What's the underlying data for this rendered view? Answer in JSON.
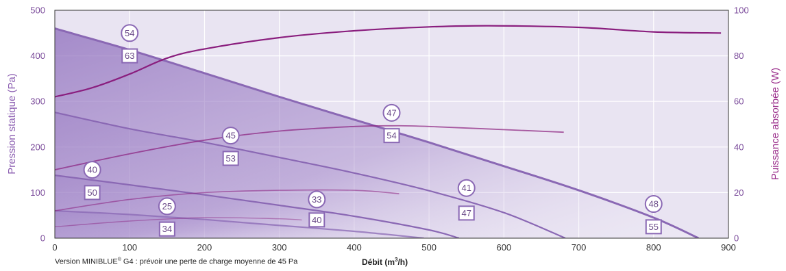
{
  "chart_data": {
    "type": "line",
    "xlabel": "Débit",
    "xunit": "m",
    "xunit_exp": "3",
    "xunit_tail": "/h)",
    "xlabel_open": " (",
    "ylabel": "Pression statique (Pa)",
    "y2label": "Puissance absorbée (W)",
    "xlim": [
      0,
      900
    ],
    "ylim": [
      0,
      500
    ],
    "y2lim": [
      0,
      100
    ],
    "x_ticks": [
      "0",
      "100",
      "200",
      "300",
      "400",
      "500",
      "600",
      "700",
      "800",
      "900"
    ],
    "y_ticks": [
      "0",
      "100",
      "200",
      "300",
      "400",
      "500"
    ],
    "y2_ticks": [
      "0",
      "20",
      "40",
      "60",
      "80",
      "100"
    ],
    "grid": true,
    "pressure_curves": [
      {
        "x": [
          0,
          100,
          200,
          300,
          400,
          500,
          600,
          700,
          800,
          860
        ],
        "y": [
          460,
          413,
          362,
          310,
          260,
          210,
          158,
          105,
          45,
          0
        ]
      },
      {
        "x": [
          0,
          100,
          200,
          300,
          400,
          500,
          600,
          682
        ],
        "y": [
          276,
          240,
          210,
          177,
          143,
          104,
          56,
          0
        ]
      },
      {
        "x": [
          0,
          100,
          200,
          300,
          400,
          500,
          540
        ],
        "y": [
          138,
          117,
          95,
          72,
          48,
          18,
          0
        ]
      },
      {
        "x": [
          0,
          100,
          200,
          300,
          400,
          493
        ],
        "y": [
          60,
          52,
          41,
          28,
          15,
          0
        ]
      }
    ],
    "power_curves": [
      {
        "x": [
          0,
          50,
          100,
          150,
          200,
          300,
          400,
          500,
          580,
          700,
          800,
          890
        ],
        "y": [
          62,
          66,
          72,
          79,
          83,
          88,
          91,
          92.7,
          93.2,
          92.5,
          90.5,
          90
        ]
      },
      {
        "x": [
          0,
          100,
          200,
          300,
          400,
          450,
          500,
          680
        ],
        "y": [
          30,
          37,
          43,
          47,
          49,
          49.3,
          49,
          46.5
        ]
      },
      {
        "x": [
          0,
          100,
          200,
          300,
          400,
          460
        ],
        "y": [
          12,
          17,
          20,
          21,
          21,
          19.5
        ]
      },
      {
        "x": [
          0,
          100,
          200,
          300,
          330
        ],
        "y": [
          5,
          7.5,
          9,
          8.5,
          8
        ]
      }
    ],
    "annotations": [
      {
        "shape": "circle",
        "text": "54",
        "x": 100,
        "y": 450
      },
      {
        "shape": "square",
        "text": "63",
        "x": 100,
        "y": 400
      },
      {
        "shape": "circle",
        "text": "47",
        "x": 450,
        "y": 275
      },
      {
        "shape": "square",
        "text": "54",
        "x": 450,
        "y": 225
      },
      {
        "shape": "circle",
        "text": "45",
        "x": 235,
        "y": 225
      },
      {
        "shape": "square",
        "text": "53",
        "x": 235,
        "y": 175
      },
      {
        "shape": "circle",
        "text": "40",
        "x": 50,
        "y": 150
      },
      {
        "shape": "square",
        "text": "50",
        "x": 50,
        "y": 100
      },
      {
        "shape": "circle",
        "text": "41",
        "x": 550,
        "y": 110
      },
      {
        "shape": "square",
        "text": "47",
        "x": 550,
        "y": 55
      },
      {
        "shape": "circle",
        "text": "33",
        "x": 350,
        "y": 85
      },
      {
        "shape": "square",
        "text": "40",
        "x": 350,
        "y": 40
      },
      {
        "shape": "circle",
        "text": "25",
        "x": 150,
        "y": 70
      },
      {
        "shape": "square",
        "text": "34",
        "x": 150,
        "y": 20
      },
      {
        "shape": "circle",
        "text": "48",
        "x": 800,
        "y": 75
      },
      {
        "shape": "square",
        "text": "55",
        "x": 800,
        "y": 25
      }
    ]
  },
  "footnote": {
    "prefix": "Version MINIBLUE",
    "reg": "®",
    "suffix": " G4 : prévoir une perte de charge moyenne de 45 Pa"
  },
  "colors": {
    "plot_bg": "#e9e4f2",
    "grid": "#ffffff",
    "pressure_line": "#8a68b4",
    "pressure_fill": "#a98dcb",
    "power_line": "#8a1e7e",
    "left_axis": "#8a5cb0",
    "right_axis": "#9b2f8c",
    "marker_stroke": "#8a68b4"
  }
}
